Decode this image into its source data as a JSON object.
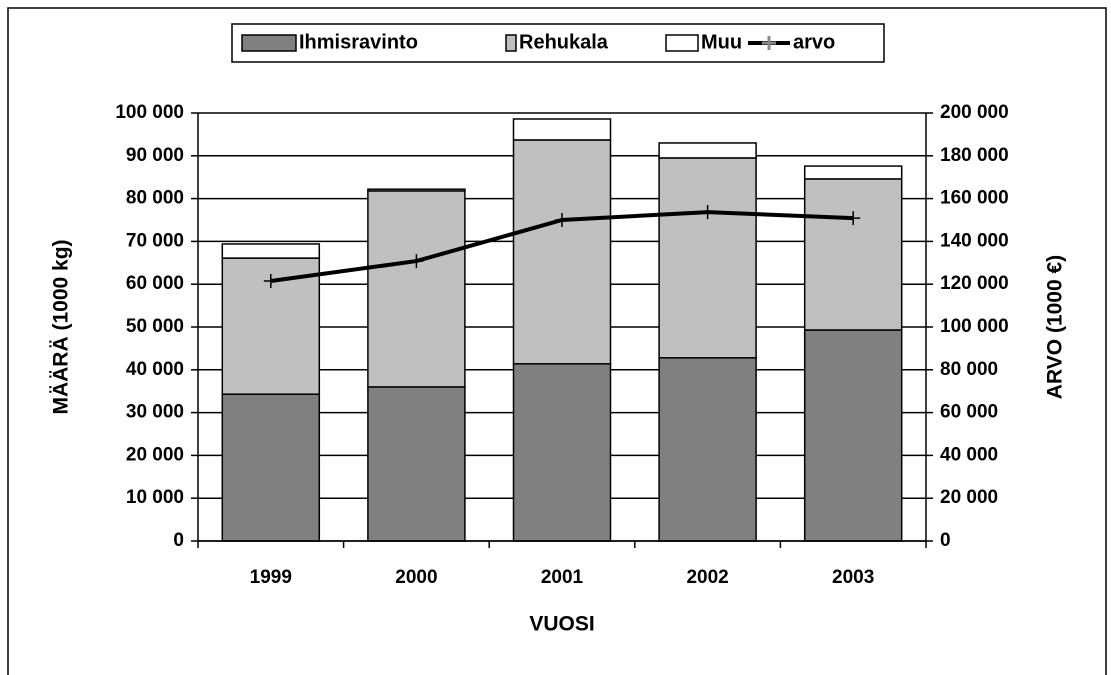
{
  "chart_data": {
    "type": "bar",
    "stacked": true,
    "xlabel": "VUOSI",
    "ylabel": "MÄÄRÄ (1000 kg)",
    "y2label": "ARVO (1000 €)",
    "categories": [
      "1999",
      "2000",
      "2001",
      "2002",
      "2003"
    ],
    "series": [
      {
        "name": "Ihmisravinto",
        "color": "#808080",
        "values": [
          34300,
          36000,
          41400,
          42800,
          49300
        ]
      },
      {
        "name": "Rehukala",
        "color": "#c0c0c0",
        "values": [
          31800,
          45800,
          52300,
          46700,
          35300
        ]
      },
      {
        "name": "Muu",
        "color": "#ffffff",
        "values": [
          3300,
          400,
          4900,
          3500,
          3000
        ]
      },
      {
        "name": "arvo",
        "type": "line",
        "axis": "y2",
        "color": "#000000",
        "values": [
          121500,
          130800,
          150000,
          153700,
          150900
        ]
      }
    ],
    "ylim": [
      0,
      100000
    ],
    "yticks": [
      0,
      {
        "value": 10000,
        "label": "10 000"
      },
      {
        "value": 20000,
        "label": "20 000"
      },
      {
        "value": 30000,
        "label": "30 000"
      },
      {
        "value": 40000,
        "label": "40 000"
      },
      {
        "value": 50000,
        "label": "50 000"
      },
      {
        "value": 60000,
        "label": "60 000"
      },
      {
        "value": 70000,
        "label": "70 000"
      },
      {
        "value": 80000,
        "label": "80 000"
      },
      {
        "value": 90000,
        "label": "90 000"
      },
      {
        "value": 100000,
        "label": "100 000"
      }
    ],
    "y2lim": [
      0,
      200000
    ],
    "y2ticks": [
      0,
      {
        "value": 20000,
        "label": "20 000"
      },
      {
        "value": 40000,
        "label": "40 000"
      },
      {
        "value": 60000,
        "label": "60 000"
      },
      {
        "value": 80000,
        "label": "80 000"
      },
      {
        "value": 100000,
        "label": "100 000"
      },
      {
        "value": 120000,
        "label": "120 000"
      },
      {
        "value": 140000,
        "label": "140 000"
      },
      {
        "value": 160000,
        "label": "160 000"
      },
      {
        "value": 180000,
        "label": "180 000"
      },
      {
        "value": 200000,
        "label": "200 000"
      }
    ],
    "grid": true,
    "legend": "top"
  }
}
